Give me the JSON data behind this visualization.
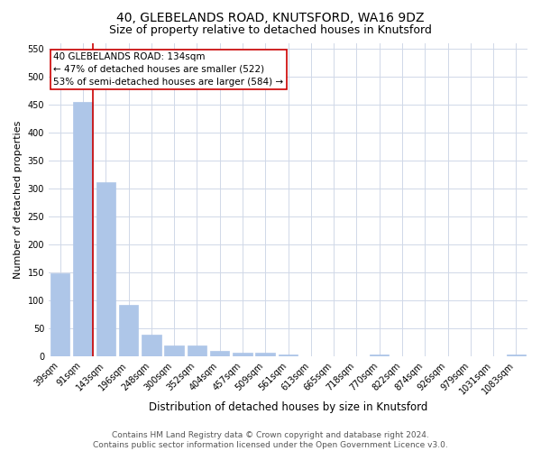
{
  "title1": "40, GLEBELANDS ROAD, KNUTSFORD, WA16 9DZ",
  "title2": "Size of property relative to detached houses in Knutsford",
  "xlabel": "Distribution of detached houses by size in Knutsford",
  "ylabel": "Number of detached properties",
  "categories": [
    "39sqm",
    "91sqm",
    "143sqm",
    "196sqm",
    "248sqm",
    "300sqm",
    "352sqm",
    "404sqm",
    "457sqm",
    "509sqm",
    "561sqm",
    "613sqm",
    "665sqm",
    "718sqm",
    "770sqm",
    "822sqm",
    "874sqm",
    "926sqm",
    "979sqm",
    "1031sqm",
    "1083sqm"
  ],
  "values": [
    148,
    455,
    311,
    92,
    38,
    19,
    20,
    10,
    6,
    6,
    4,
    0,
    0,
    0,
    4,
    0,
    0,
    0,
    0,
    0,
    4
  ],
  "bar_color": "#aec6e8",
  "bar_edge_color": "#aec6e8",
  "vline_x_index": 1,
  "vline_color": "#cc0000",
  "annotation_text": "40 GLEBELANDS ROAD: 134sqm\n← 47% of detached houses are smaller (522)\n53% of semi-detached houses are larger (584) →",
  "annotation_box_color": "#ffffff",
  "annotation_box_edge_color": "#cc0000",
  "ylim": [
    0,
    560
  ],
  "yticks": [
    0,
    50,
    100,
    150,
    200,
    250,
    300,
    350,
    400,
    450,
    500,
    550
  ],
  "footer": "Contains HM Land Registry data © Crown copyright and database right 2024.\nContains public sector information licensed under the Open Government Licence v3.0.",
  "background_color": "#ffffff",
  "grid_color": "#d0d8e8",
  "title1_fontsize": 10,
  "title2_fontsize": 9,
  "xlabel_fontsize": 8.5,
  "ylabel_fontsize": 8,
  "tick_fontsize": 7,
  "annotation_fontsize": 7.5,
  "footer_fontsize": 6.5
}
